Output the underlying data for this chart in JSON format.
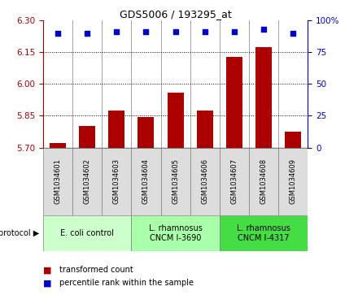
{
  "title": "GDS5006 / 193295_at",
  "samples": [
    "GSM1034601",
    "GSM1034602",
    "GSM1034603",
    "GSM1034604",
    "GSM1034605",
    "GSM1034606",
    "GSM1034607",
    "GSM1034608",
    "GSM1034609"
  ],
  "transformed_count": [
    5.72,
    5.8,
    5.875,
    5.845,
    5.96,
    5.875,
    6.13,
    6.175,
    5.775
  ],
  "percentile_rank": [
    90,
    90,
    91,
    91,
    91,
    91,
    91,
    93,
    90
  ],
  "ylim_left": [
    5.7,
    6.3
  ],
  "ylim_right": [
    0,
    100
  ],
  "yticks_left": [
    5.7,
    5.85,
    6.0,
    6.15,
    6.3
  ],
  "yticks_right": [
    0,
    25,
    50,
    75,
    100
  ],
  "bar_color": "#aa0000",
  "dot_color": "#0000cc",
  "protocol_groups": [
    {
      "label": "E. coli control",
      "start": 0,
      "end": 3,
      "color": "#ccffcc"
    },
    {
      "label": "L. rhamnosus\nCNCM I-3690",
      "start": 3,
      "end": 6,
      "color": "#aaffaa"
    },
    {
      "label": "L. rhamnosus\nCNCM I-4317",
      "start": 6,
      "end": 9,
      "color": "#44dd44"
    }
  ],
  "legend_items": [
    {
      "label": "transformed count",
      "color": "#aa0000"
    },
    {
      "label": "percentile rank within the sample",
      "color": "#0000cc"
    }
  ],
  "title_fontsize": 9,
  "axis_fontsize": 7.5,
  "sample_fontsize": 6,
  "proto_fontsize": 7
}
